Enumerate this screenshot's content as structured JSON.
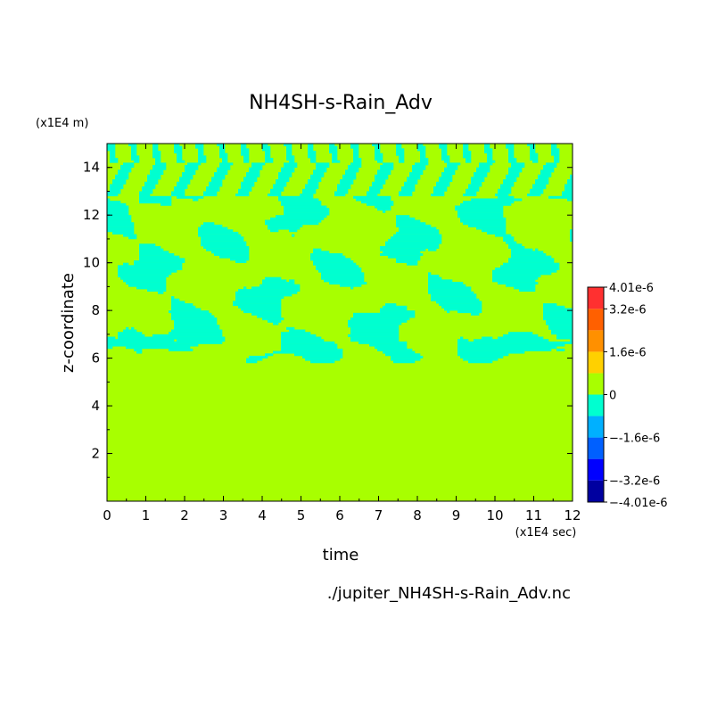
{
  "chart_data": {
    "type": "heatmap",
    "title": "NH4SH-s-Rain_Adv",
    "xlabel": "time",
    "ylabel": "z-coordinate",
    "x_unit": "(x1E4 sec)",
    "y_unit": "(x1E4 m)",
    "xlim": [
      0,
      12
    ],
    "ylim": [
      0,
      15
    ],
    "x_ticks": [
      0,
      1,
      2,
      3,
      4,
      5,
      6,
      7,
      8,
      9,
      10,
      11,
      12
    ],
    "y_ticks": [
      2,
      4,
      6,
      8,
      10,
      12,
      14
    ],
    "colorbar": {
      "levels": [
        -4.01e-06,
        -3.2e-06,
        -2.4e-06,
        -1.6e-06,
        -8e-07,
        0,
        8e-07,
        1.6e-06,
        2.4e-06,
        3.2e-06,
        4.01e-06
      ],
      "colors": [
        "#0000a0",
        "#0000ff",
        "#0060ff",
        "#00b0ff",
        "#00ffd0",
        "#a8ff00",
        "#ffd000",
        "#ff9000",
        "#ff6000",
        "#ff3030"
      ],
      "tick_labels": [
        "4.01e-6",
        "3.2e-6",
        "1.6e-6",
        "0",
        "-1.6e-6",
        "-3.2e-6",
        "-4.01e-6"
      ]
    },
    "field_description": "zero below z≈6 (x1E4 m); alternating near-zero and small negative (cyan) patches above, banded diagonal stripes near top",
    "footer": "./jupiter_NH4SH-s-Rain_Adv.nc"
  }
}
